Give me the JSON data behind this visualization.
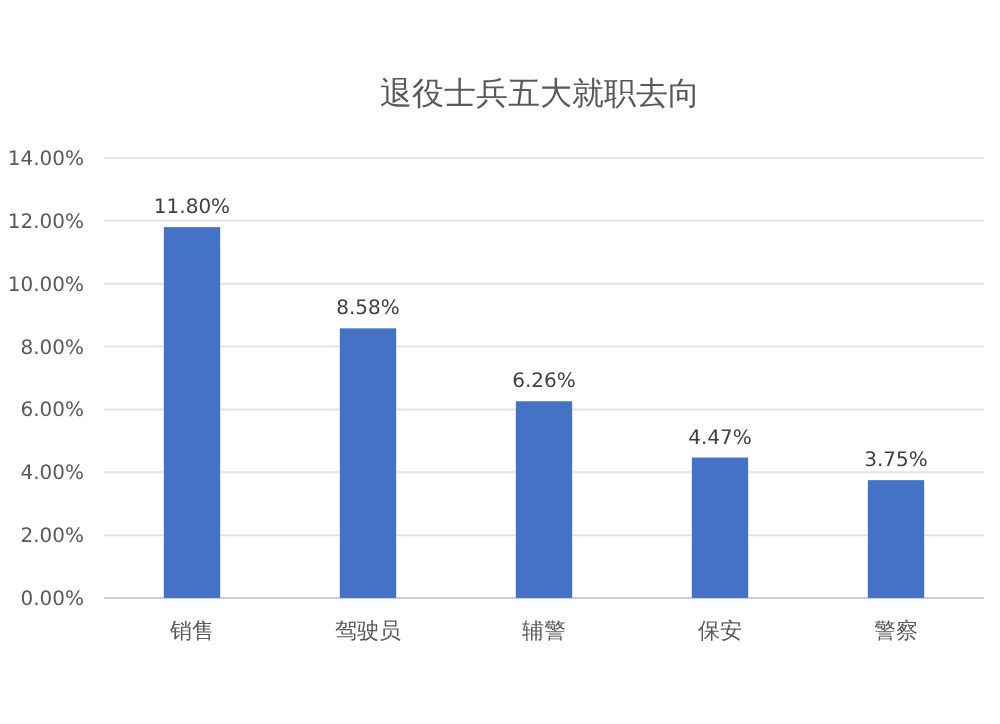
{
  "chart_data": {
    "type": "bar",
    "title": "退役士兵五大就职去向",
    "categories": [
      "销售",
      "驾驶员",
      "辅警",
      "保安",
      "警察"
    ],
    "values": [
      11.8,
      8.58,
      6.26,
      4.47,
      3.75
    ],
    "value_labels": [
      "11.80%",
      "8.58%",
      "6.26%",
      "4.47%",
      "3.75%"
    ],
    "color": "#4472c4",
    "ylim": [
      0,
      14
    ],
    "yticks": [
      {
        "value": 0,
        "label": "0.00%"
      },
      {
        "value": 2,
        "label": "2.00%"
      },
      {
        "value": 4,
        "label": "4.00%"
      },
      {
        "value": 6,
        "label": "6.00%"
      },
      {
        "value": 8,
        "label": "8.00%"
      },
      {
        "value": 10,
        "label": "10.00%"
      },
      {
        "value": 12,
        "label": "12.00%"
      },
      {
        "value": 14,
        "label": "14.00%"
      }
    ],
    "grid": "y"
  }
}
